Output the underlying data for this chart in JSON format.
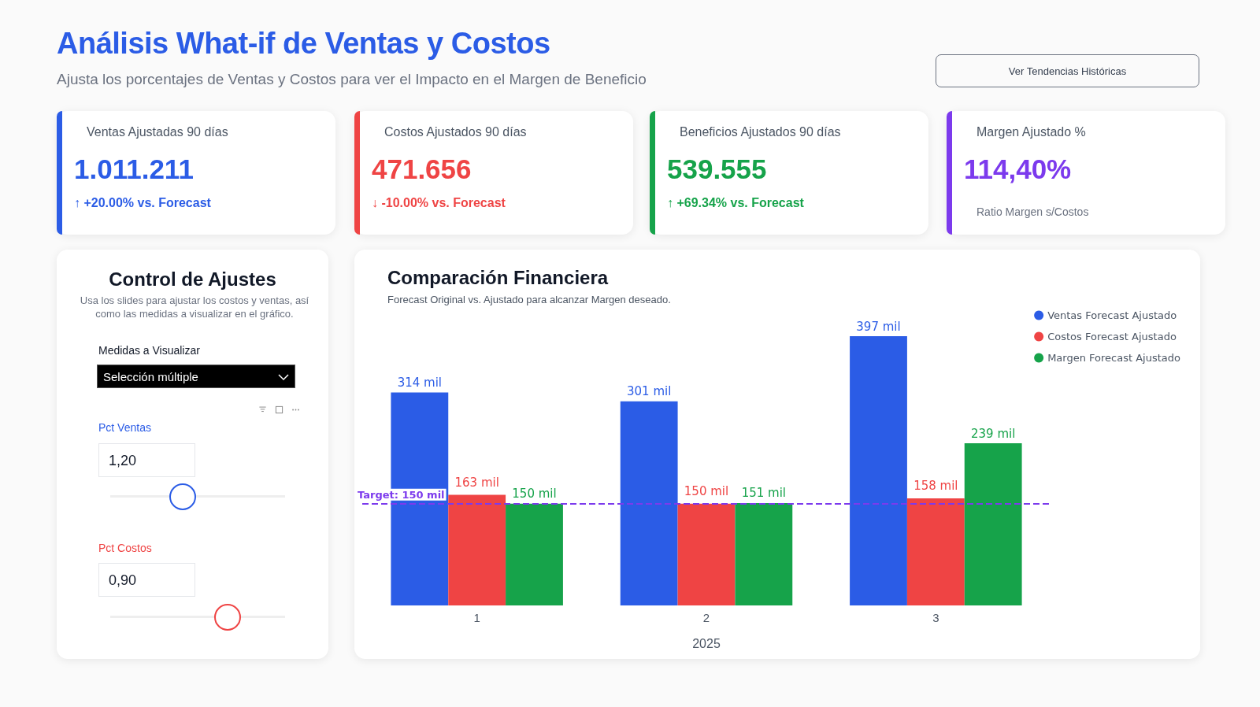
{
  "chart_data": [
    {
      "type": "other",
      "title": "Análisis What-if de Ventas y Costos",
      "subtitle": "Ajusta los porcentajes de Ventas y Costos para ver el Impacto en el Margen de Beneficio",
      "annotations": [
        "Ver Tendencias Históricas"
      ]
    },
    {
      "type": "other",
      "title": "Ventas Ajustadas 90 días",
      "annotations": [
        "1.011.211",
        "↑ +20.00% vs. Forecast"
      ],
      "colors": [
        "#2b5ce6",
        "#2b5ce6"
      ]
    },
    {
      "type": "other",
      "title": "Costos Ajustados 90 días",
      "annotations": [
        "471.656",
        "↓ -10.00% vs. Forecast"
      ],
      "colors": [
        "#ef4444",
        "#ef4444"
      ]
    },
    {
      "type": "other",
      "title": "Beneficios Ajustados 90 días",
      "annotations": [
        "539.555",
        "↑ +69.34% vs. Forecast"
      ],
      "colors": [
        "#16a34a",
        "#16a34a"
      ]
    },
    {
      "type": "other",
      "title": "Margen Ajustado %",
      "annotations": [
        "114,40%",
        "Ratio Margen s/Costos"
      ],
      "colors": [
        "#7c3aed",
        "#6b7280"
      ]
    },
    {
      "type": "other",
      "title": "Control de Ajustes",
      "subtitle": "Usa los slides para ajustar los costos y ventas, así como las medidas a visualizar en el gráfico.",
      "annotations": [
        "Medidas a Visualizar",
        "Selección múltiple",
        "Pct Ventas",
        "1,20",
        "Pct Costos",
        "0,90"
      ],
      "colors": [
        "#111827",
        "#ffffff",
        "#2b5ce6",
        "#111827",
        "#ef4444",
        "#111827"
      ]
    },
    {
      "type": "bar",
      "title": "Comparación Financiera",
      "subtitle": "Forecast Original vs. Ajustado para alcanzar Margen deseado.",
      "xlabel": "2025",
      "categories": [
        "1",
        "2",
        "3"
      ],
      "legend": "top right",
      "series": [
        {
          "name": "Ventas Forecast Ajustado",
          "color": "#2b5ce6",
          "values": [
            314,
            301,
            397
          ],
          "value_labels": [
            "314 mil",
            "301 mil",
            "397 mil"
          ]
        },
        {
          "name": "Costos Forecast Ajustado",
          "color": "#ef4444",
          "values": [
            163,
            150,
            158
          ],
          "value_labels": [
            "163 mil",
            "150 mil",
            "158 mil"
          ]
        },
        {
          "name": "Margen Forecast Ajustado",
          "color": "#16a34a",
          "values": [
            150,
            151,
            239
          ],
          "value_labels": [
            "150 mil",
            "151 mil",
            "239 mil"
          ]
        }
      ],
      "ref_lines": [
        {
          "axis": "y",
          "value": 150,
          "label": "Target: 150 mil",
          "color": "#7c3aed",
          "line_style": "dashed"
        }
      ]
    }
  ]
}
